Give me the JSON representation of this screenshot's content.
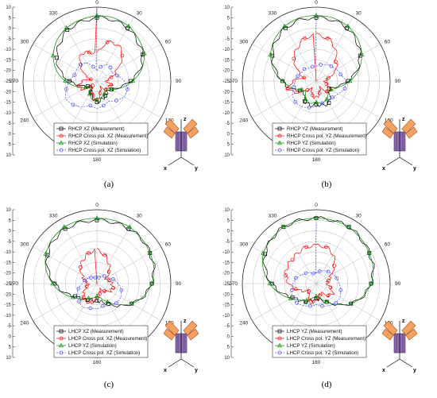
{
  "chart_data": [
    {
      "type": "polar-line",
      "panel_label": "(a)",
      "radial_ticks": [
        "10",
        "5",
        "0",
        "-5",
        "-10",
        "-15",
        "-20",
        "-25",
        "-20",
        "-15",
        "-10",
        "-5",
        "0",
        "5",
        "10"
      ],
      "radial_range": [
        -25,
        10
      ],
      "angle_ticks": [
        "0",
        "30",
        "60",
        "90",
        "120",
        "150",
        "180",
        "210",
        "240",
        "270",
        "300",
        "330"
      ],
      "visible_angle_labels": [
        "0",
        "30",
        "60",
        "90",
        "120",
        "180",
        "240",
        "270",
        "300",
        "330"
      ],
      "legend_position": "bottom-center",
      "series": [
        {
          "name": "RHCP XZ (Measurement)",
          "color": "#000000",
          "marker": "square",
          "dash": "solid",
          "values": [
            5,
            5,
            4,
            2,
            0,
            -4,
            -9,
            -14,
            -17,
            -18,
            -17,
            -16,
            -15,
            -17,
            -19,
            -22,
            -20,
            -17,
            -12,
            -7,
            -3,
            0,
            3,
            4
          ]
        },
        {
          "name": "RHCP Cross pol. XZ (Measurement)",
          "color": "#ff0000",
          "marker": "circle",
          "dash": "solid",
          "values": [
            -12,
            -6,
            -5,
            -8,
            -14,
            -18,
            -21,
            -18,
            -19,
            -19,
            -22,
            -19,
            -16,
            -18,
            -20,
            -22,
            -17,
            -16,
            -18,
            -22,
            -18,
            -14,
            -10,
            -11
          ]
        },
        {
          "name": "RHCP XZ (Simulation)",
          "color": "#008800",
          "marker": "triangle",
          "dash": "solid",
          "values": [
            6,
            6,
            5,
            3,
            1,
            -3,
            -8,
            -13,
            -17,
            -19,
            -18,
            -17,
            -16,
            -16,
            -18,
            -21,
            -19,
            -15,
            -10,
            -5,
            -1,
            2,
            4,
            5
          ]
        },
        {
          "name": "RHCP Cross pol. XZ (Simulation)",
          "color": "#4b4bff",
          "marker": "circle",
          "dash": "dash",
          "values": [
            -20,
            -18,
            -16,
            -16,
            -17,
            -15,
            -12,
            -10,
            -10,
            -12,
            -14,
            -13,
            -12,
            -13,
            -11,
            -9,
            -8,
            -10,
            -12,
            -14,
            -14,
            -14,
            -15,
            -18
          ]
        }
      ]
    },
    {
      "type": "polar-line",
      "panel_label": "(b)",
      "radial_ticks": [
        "10",
        "5",
        "0",
        "-5",
        "-10",
        "-15",
        "-20",
        "-25",
        "-20",
        "-15",
        "-10",
        "-5",
        "0",
        "5",
        "10"
      ],
      "radial_range": [
        -25,
        10
      ],
      "angle_ticks": [
        "0",
        "30",
        "60",
        "90",
        "120",
        "150",
        "180",
        "210",
        "240",
        "270",
        "300",
        "330"
      ],
      "visible_angle_labels": [
        "0",
        "30",
        "60",
        "90",
        "120",
        "180",
        "240",
        "270",
        "300",
        "330"
      ],
      "legend_position": "bottom-center",
      "series": [
        {
          "name": "RHCP YZ (Measurement)",
          "color": "#000000",
          "marker": "square",
          "dash": "solid",
          "values": [
            5,
            5,
            4,
            2,
            -1,
            -5,
            -10,
            -15,
            -18,
            -16,
            -13,
            -13,
            -14,
            -13,
            -14,
            -17,
            -16,
            -12,
            -9,
            -5,
            -1,
            2,
            4,
            5
          ]
        },
        {
          "name": "RHCP Cross pol. YZ (Measurement)",
          "color": "#ff0000",
          "marker": "circle",
          "dash": "solid",
          "values": [
            -3,
            -4,
            -7,
            -12,
            -14,
            -19,
            -21,
            -20,
            -17,
            -18,
            -22,
            -19,
            -17,
            -18,
            -21,
            -19,
            -14,
            -11,
            -14,
            -19,
            -15,
            -10,
            -7,
            -4
          ]
        },
        {
          "name": "RHCP YZ (Simulation)",
          "color": "#008800",
          "marker": "triangle",
          "dash": "solid",
          "values": [
            6,
            6,
            5,
            3,
            0,
            -4,
            -9,
            -14,
            -17,
            -17,
            -15,
            -14,
            -15,
            -14,
            -15,
            -18,
            -17,
            -13,
            -9,
            -4,
            0,
            3,
            5,
            6
          ]
        },
        {
          "name": "RHCP Cross pol. YZ (Simulation)",
          "color": "#4b4bff",
          "marker": "circle",
          "dash": "dash",
          "values": [
            -18,
            -17,
            -16,
            -15,
            -14,
            -13,
            -11,
            -11,
            -13,
            -14,
            -15,
            -14,
            -13,
            -12,
            -11,
            -11,
            -12,
            -14,
            -15,
            -16,
            -17,
            -17,
            -18,
            -18
          ]
        }
      ]
    },
    {
      "type": "polar-line",
      "panel_label": "(c)",
      "radial_ticks": [
        "10",
        "5",
        "0",
        "-5",
        "-10",
        "-15",
        "-20",
        "-25",
        "-20",
        "-15",
        "-10",
        "-5",
        "0",
        "5",
        "10"
      ],
      "radial_range": [
        -25,
        10
      ],
      "angle_ticks": [
        "0",
        "30",
        "60",
        "90",
        "120",
        "150",
        "180",
        "210",
        "240",
        "270",
        "300",
        "330"
      ],
      "visible_angle_labels": [
        "0",
        "30",
        "60",
        "90",
        "120",
        "180",
        "240",
        "270",
        "300",
        "330"
      ],
      "legend_position": "bottom-center",
      "series": [
        {
          "name": "LHCP XZ (Measurement)",
          "color": "#000000",
          "marker": "square",
          "dash": "solid",
          "values": [
            5,
            5,
            5,
            5,
            4,
            3,
            1,
            -2,
            -6,
            -10,
            -14,
            -16,
            -17,
            -17,
            -16,
            -15,
            -13,
            -9,
            -5,
            -1,
            2,
            4,
            5,
            5
          ]
        },
        {
          "name": "LHCP Cross pol. XZ (Measurement)",
          "color": "#ff0000",
          "marker": "circle",
          "dash": "solid",
          "values": [
            -9,
            -11,
            -14,
            -17,
            -20,
            -19,
            -18,
            -17,
            -18,
            -20,
            -22,
            -20,
            -18,
            -16,
            -15,
            -16,
            -18,
            -20,
            -21,
            -19,
            -17,
            -14,
            -12,
            -10
          ]
        },
        {
          "name": "LHCP YZ (Simulation)",
          "color": "#008800",
          "marker": "triangle",
          "dash": "solid",
          "values": [
            6,
            6,
            6,
            5,
            4,
            3,
            1,
            -2,
            -6,
            -11,
            -15,
            -18,
            -19,
            -18,
            -17,
            -15,
            -12,
            -8,
            -4,
            0,
            3,
            5,
            6,
            6
          ]
        },
        {
          "name": "LHCP Cross pol. XZ (Simulation)",
          "color": "#4b4bff",
          "marker": "circle",
          "dash": "dash",
          "values": [
            -22,
            -22,
            -21,
            -20,
            -19,
            -17,
            -15,
            -13,
            -12,
            -12,
            -13,
            -14,
            -13,
            -13,
            -12,
            -13,
            -14,
            -16,
            -18,
            -19,
            -20,
            -21,
            -22,
            -22
          ]
        }
      ]
    },
    {
      "type": "polar-line",
      "panel_label": "(d)",
      "radial_ticks": [
        "10",
        "5",
        "0",
        "-5",
        "-10",
        "-15",
        "-20",
        "-25",
        "-20",
        "-15",
        "-10",
        "-5",
        "0",
        "5",
        "10"
      ],
      "radial_range": [
        -25,
        10
      ],
      "angle_ticks": [
        "0",
        "30",
        "60",
        "90",
        "120",
        "150",
        "180",
        "210",
        "240",
        "270",
        "300",
        "330"
      ],
      "visible_angle_labels": [
        "0",
        "30",
        "60",
        "90",
        "120",
        "180",
        "240",
        "270",
        "300",
        "330"
      ],
      "legend_position": "bottom-center",
      "series": [
        {
          "name": "LHCP YZ (Measurement)",
          "color": "#000000",
          "marker": "square",
          "dash": "solid",
          "values": [
            6,
            6,
            6,
            5,
            4,
            3,
            1,
            -2,
            -6,
            -11,
            -15,
            -17,
            -18,
            -17,
            -15,
            -14,
            -12,
            -8,
            -4,
            0,
            3,
            5,
            6,
            6
          ]
        },
        {
          "name": "LHCP Cross pol. YZ (Measurement)",
          "color": "#ff0000",
          "marker": "circle",
          "dash": "solid",
          "values": [
            -7,
            -7,
            -9,
            -13,
            -17,
            -19,
            -20,
            -18,
            -16,
            -17,
            -20,
            -19,
            -17,
            -16,
            -18,
            -20,
            -18,
            -15,
            -12,
            -10,
            -9,
            -9,
            -8,
            -7
          ]
        },
        {
          "name": "LHCP YZ (Simulation)",
          "color": "#008800",
          "marker": "triangle",
          "dash": "solid",
          "values": [
            6,
            6,
            6,
            5,
            4,
            3,
            1,
            -2,
            -6,
            -11,
            -15,
            -18,
            -19,
            -18,
            -16,
            -14,
            -11,
            -7,
            -3,
            1,
            4,
            5,
            6,
            6
          ]
        },
        {
          "name": "LHCP Cross pol. YZ (Simulation)",
          "color": "#4b4bff",
          "marker": "circle",
          "dash": "dash",
          "values": [
            -20,
            -19,
            -18,
            -17,
            -16,
            -15,
            -14,
            -13,
            -12,
            -12,
            -13,
            -14,
            -15,
            -14,
            -13,
            -12,
            -12,
            -13,
            -14,
            -15,
            -17,
            -18,
            -19,
            -20
          ]
        }
      ]
    }
  ],
  "inset": {
    "axis_labels": {
      "z": "z",
      "x": "x",
      "y": "y"
    },
    "colors": {
      "body": "#8c6bb1",
      "arms": "#f4a261",
      "arm_stroke": "#a0522d"
    }
  }
}
